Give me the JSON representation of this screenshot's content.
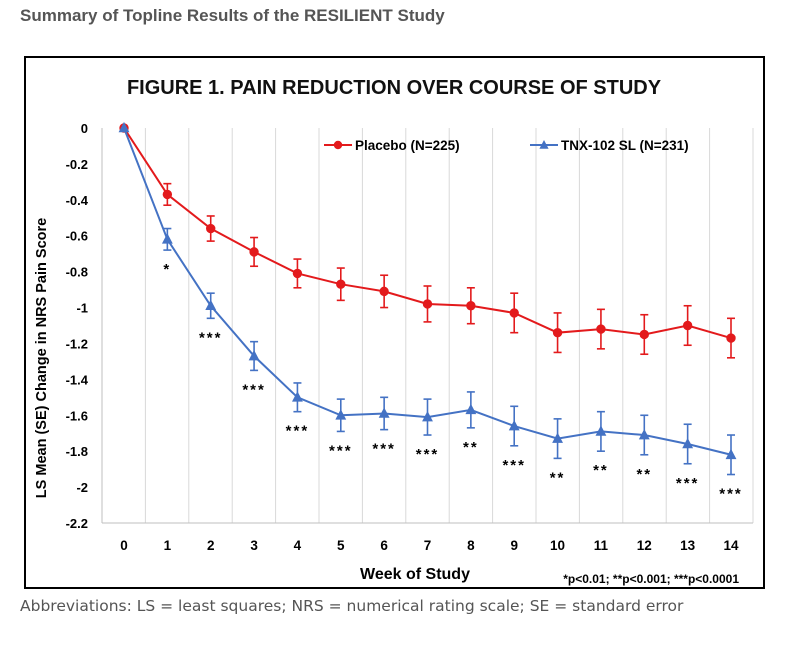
{
  "page_heading": "Summary of Topline Results of the RESILIENT Study",
  "caption": "Abbreviations: LS = least squares; NRS = numerical rating scale; SE = standard error",
  "chart_data": {
    "type": "line",
    "title": "FIGURE 1. PAIN REDUCTION OVER COURSE OF STUDY",
    "xlabel": "Week of Study",
    "ylabel": "LS Mean (SE) Change in NRS Pain Score",
    "footnote": "*p<0.01; **p<0.001; ***p<0.0001",
    "x": [
      0,
      1,
      2,
      3,
      4,
      5,
      6,
      7,
      8,
      9,
      10,
      11,
      12,
      13,
      14
    ],
    "x_tick_labels": [
      "0",
      "1",
      "2",
      "3",
      "4",
      "5",
      "6",
      "7",
      "8",
      "9",
      "10",
      "11",
      "12",
      "13",
      "14"
    ],
    "ylim": [
      -2.2,
      0
    ],
    "y_ticks": [
      0,
      -0.2,
      -0.4,
      -0.6,
      -0.8,
      -1,
      -1.2,
      -1.4,
      -1.6,
      -1.8,
      -2,
      -2.2
    ],
    "y_tick_labels": [
      "0",
      "-0.2",
      "-0.4",
      "-0.6",
      "-0.8",
      "-1",
      "-1.2",
      "-1.4",
      "-1.6",
      "-1.8",
      "-2",
      "-2.2"
    ],
    "grid": "vertical",
    "legend_position": "top-right",
    "series": [
      {
        "name": "Placebo (N=225)",
        "color": "#e31a1c",
        "marker": "circle",
        "values": [
          0,
          -0.37,
          -0.56,
          -0.69,
          -0.81,
          -0.87,
          -0.91,
          -0.98,
          -0.99,
          -1.03,
          -1.14,
          -1.12,
          -1.15,
          -1.1,
          -1.17
        ],
        "error": [
          0,
          0.06,
          0.07,
          0.08,
          0.08,
          0.09,
          0.09,
          0.1,
          0.1,
          0.11,
          0.11,
          0.11,
          0.11,
          0.11,
          0.11
        ]
      },
      {
        "name": "TNX-102 SL (N=231)",
        "color": "#4472c4",
        "marker": "triangle",
        "values": [
          0,
          -0.62,
          -0.99,
          -1.27,
          -1.5,
          -1.6,
          -1.59,
          -1.61,
          -1.57,
          -1.66,
          -1.73,
          -1.69,
          -1.71,
          -1.76,
          -1.82
        ],
        "error": [
          0,
          0.06,
          0.07,
          0.08,
          0.08,
          0.09,
          0.09,
          0.1,
          0.1,
          0.11,
          0.11,
          0.11,
          0.11,
          0.11,
          0.11
        ]
      }
    ],
    "significance": [
      {
        "x": 1,
        "label": "*"
      },
      {
        "x": 2,
        "label": "***"
      },
      {
        "x": 3,
        "label": "***"
      },
      {
        "x": 4,
        "label": "***"
      },
      {
        "x": 5,
        "label": "***"
      },
      {
        "x": 6,
        "label": "***"
      },
      {
        "x": 7,
        "label": "***"
      },
      {
        "x": 8,
        "label": "**"
      },
      {
        "x": 9,
        "label": "***"
      },
      {
        "x": 10,
        "label": "**"
      },
      {
        "x": 11,
        "label": "**"
      },
      {
        "x": 12,
        "label": "**"
      },
      {
        "x": 13,
        "label": "***"
      },
      {
        "x": 14,
        "label": "***"
      }
    ]
  }
}
